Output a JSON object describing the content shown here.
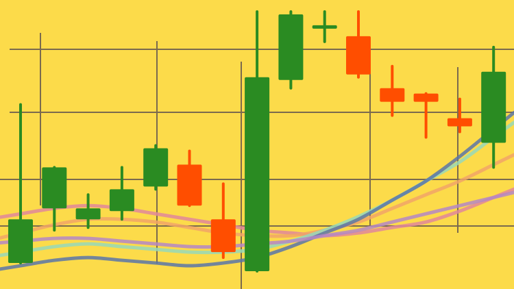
{
  "colors": {
    "background": "#FCDB4A",
    "grid": "#7A6A4E",
    "up": "#2A8B22",
    "down": "#FF4E00",
    "ma_pink": "#E0879A",
    "ma_orange": "#F1A467",
    "ma_mint": "#97D8B8",
    "ma_blue": "#5A76A8",
    "ma_purple": "#B487C6"
  },
  "chart_data": {
    "type": "candlestick",
    "title": "",
    "xlabel": "",
    "ylabel": "",
    "grid": true,
    "legend": "none",
    "ylim": [
      0,
      100
    ],
    "candles": [
      {
        "open": 6,
        "close": 22,
        "high": 64,
        "low": 6
      },
      {
        "open": 26,
        "close": 41,
        "high": 41,
        "low": 18
      },
      {
        "open": 22,
        "close": 26,
        "high": 31,
        "low": 19
      },
      {
        "open": 25,
        "close": 33,
        "high": 41,
        "low": 22
      },
      {
        "open": 34,
        "close": 48,
        "high": 49,
        "low": 33
      },
      {
        "open": 42,
        "close": 27,
        "high": 47,
        "low": 27
      },
      {
        "open": 22,
        "close": 10,
        "high": 35,
        "low": 8
      },
      {
        "open": 3,
        "close": 74,
        "high": 98,
        "low": 3
      },
      {
        "open": 73,
        "close": 97,
        "high": 98,
        "low": 70
      },
      {
        "open": 93,
        "close": 93,
        "high": 98,
        "low": 87
      },
      {
        "open": 89,
        "close": 75,
        "high": 98,
        "low": 74
      },
      {
        "open": 70,
        "close": 65,
        "high": 78,
        "low": 60
      },
      {
        "open": 68,
        "close": 65,
        "high": 68,
        "low": 52
      },
      {
        "open": 59,
        "close": 56,
        "high": 66,
        "low": 54
      },
      {
        "open": 50,
        "close": 76,
        "high": 85,
        "low": 41
      }
    ],
    "moving_averages": [
      {
        "values": [
          24,
          26,
          27,
          26,
          24,
          22,
          20,
          18,
          17,
          16,
          17,
          19,
          21,
          25,
          30
        ]
      },
      {
        "values": [
          17,
          20,
          22,
          22,
          21,
          19,
          17,
          16,
          16,
          18,
          21,
          26,
          31,
          36,
          42
        ]
      },
      {
        "values": [
          10,
          12,
          13,
          12,
          11,
          10,
          10,
          11,
          14,
          18,
          23,
          29,
          36,
          43,
          52
        ]
      },
      {
        "values": [
          5,
          7,
          8,
          7,
          6,
          5,
          6,
          8,
          12,
          17,
          22,
          29,
          36,
          45,
          55
        ]
      },
      {
        "values": [
          14,
          15,
          15,
          14,
          13,
          12,
          12,
          13,
          14,
          16,
          18,
          21,
          24,
          27,
          30
        ]
      }
    ]
  }
}
